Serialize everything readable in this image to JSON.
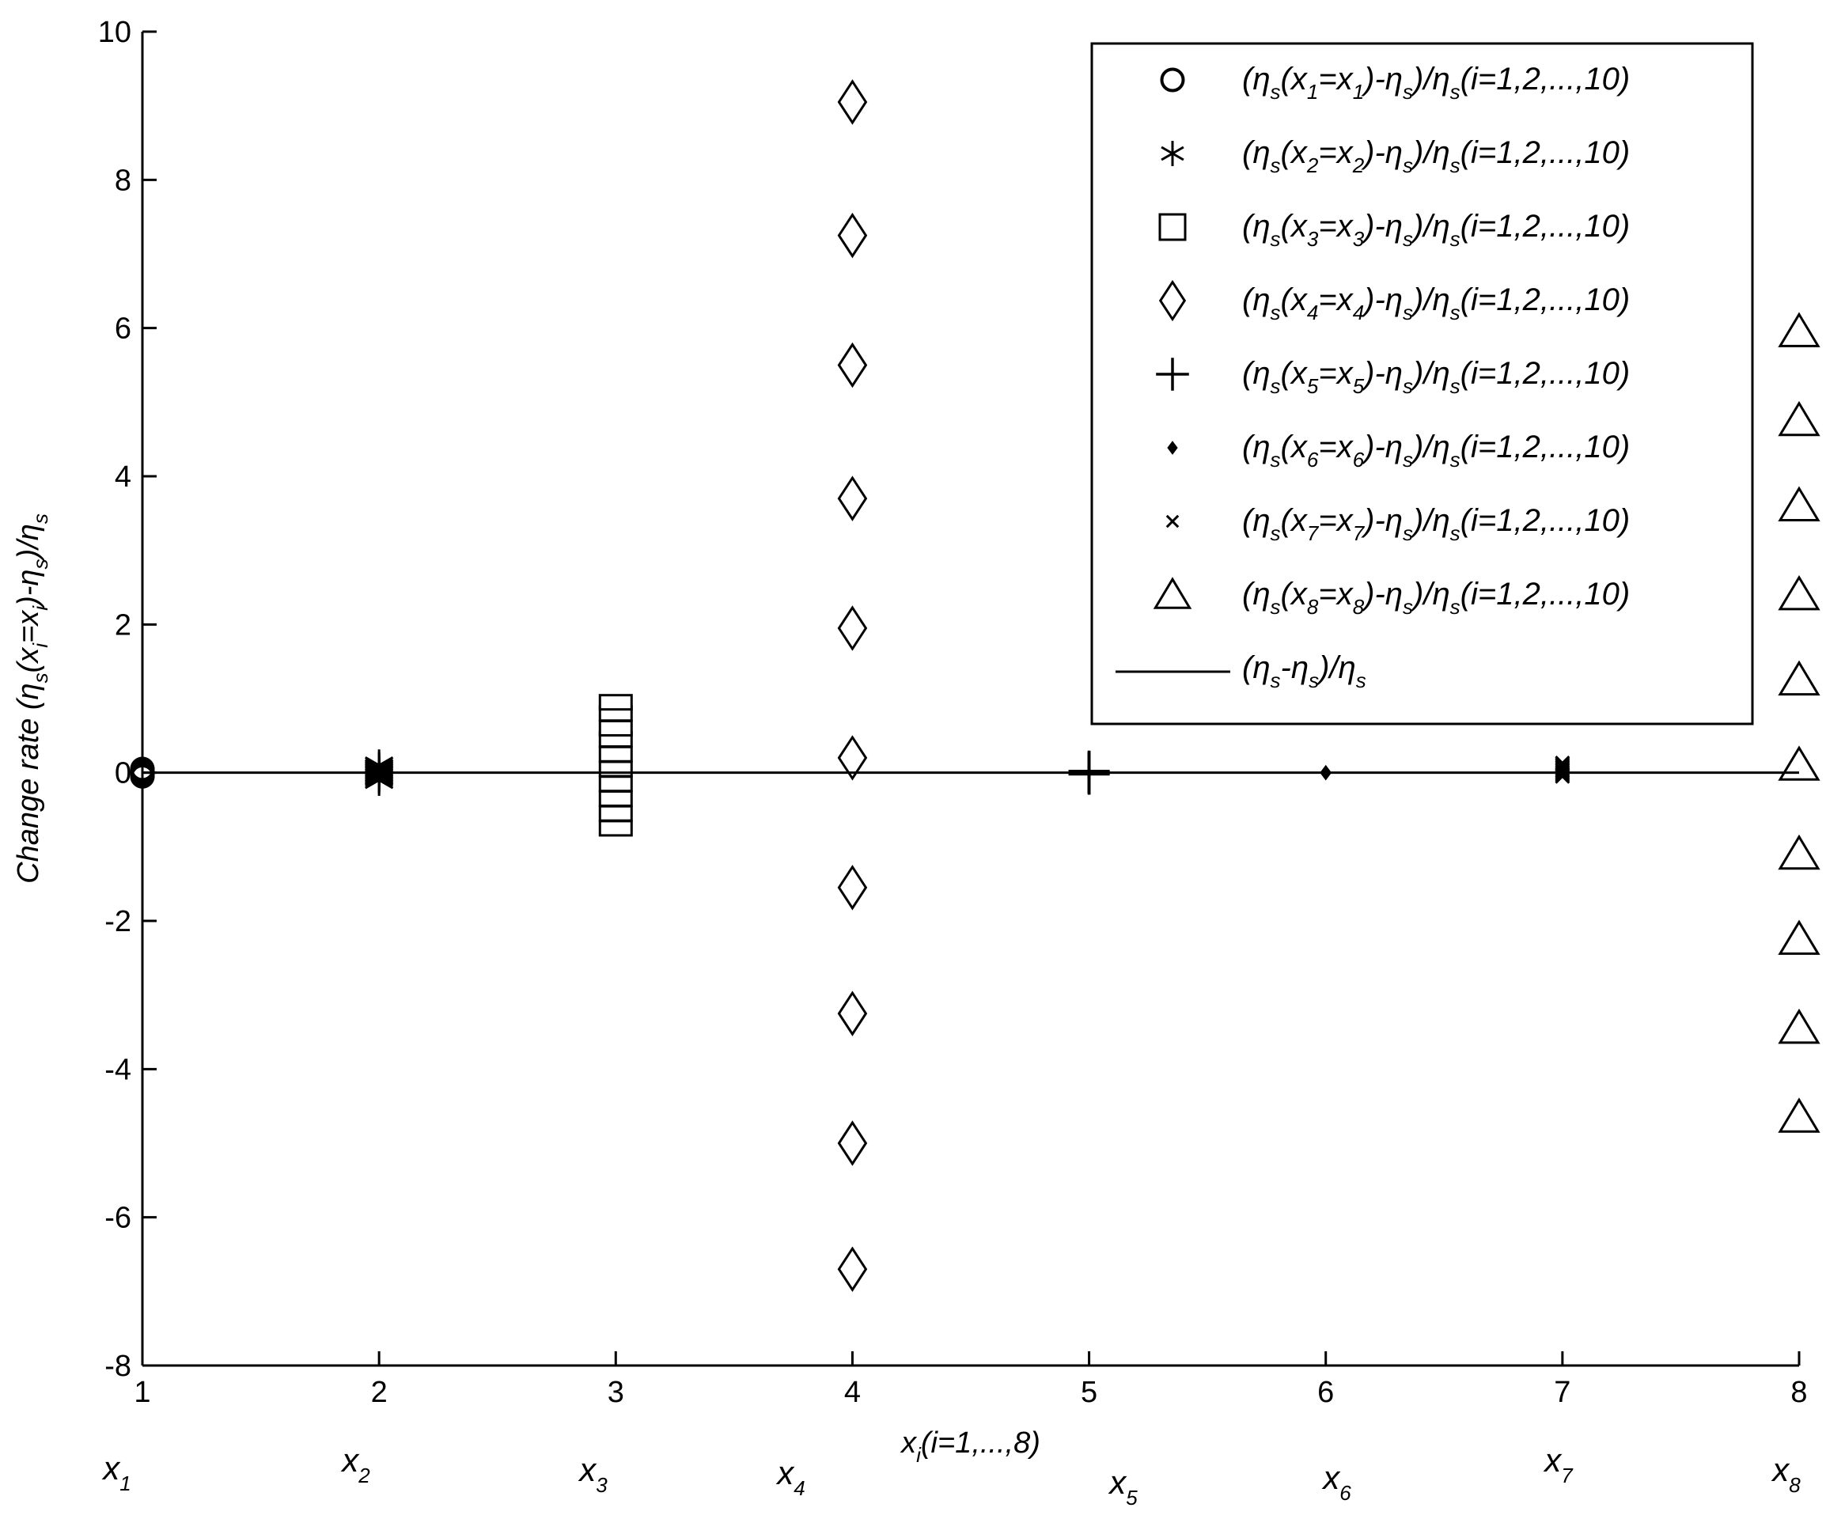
{
  "chart_data": {
    "type": "scatter",
    "title": "",
    "xlabel": "x_i(i=1,...,8)",
    "ylabel": "Change rate (η_s(x_i=x_i)-η_s)/η_s",
    "xlim": [
      1,
      8
    ],
    "ylim": [
      -8,
      10
    ],
    "xticks": [
      1,
      2,
      3,
      4,
      5,
      6,
      7,
      8
    ],
    "yticks": [
      -8,
      -6,
      -4,
      -2,
      0,
      2,
      4,
      6,
      8,
      10
    ],
    "grid": false,
    "legend_position": "top-right",
    "x_variable_labels": [
      "1",
      "2",
      "3",
      "4",
      "5",
      "6",
      "7",
      "8"
    ],
    "series": [
      {
        "name": "(η_s(x_1=x_1)-η_s)/η_s(i=1,2,...,10)",
        "marker": "circle",
        "x": 1,
        "values": [
          -0.05,
          -0.04,
          -0.03,
          -0.02,
          -0.01,
          0.01,
          0.02,
          0.03,
          0.04,
          0.05
        ]
      },
      {
        "name": "(η_s(x_2=x_2)-η_s)/η_s(i=1,2,...,10)",
        "marker": "asterisk",
        "x": 2,
        "values": [
          -0.1,
          -0.07,
          -0.05,
          -0.03,
          -0.01,
          0.01,
          0.03,
          0.05,
          0.07,
          0.1
        ]
      },
      {
        "name": "(η_s(x_3=x_3)-η_s)/η_s(i=1,2,...,10)",
        "marker": "square",
        "x": 3,
        "values": [
          -0.75,
          -0.55,
          -0.35,
          -0.15,
          0.05,
          0.25,
          0.45,
          0.6,
          0.8,
          0.95
        ]
      },
      {
        "name": "(η_s(x_4=x_4)-η_s)/η_s(i=1,2,...,10)",
        "marker": "diamond",
        "x": 4,
        "values": [
          -6.7,
          -5.0,
          -3.25,
          -1.55,
          0.2,
          1.95,
          3.7,
          5.5,
          7.25,
          9.05
        ]
      },
      {
        "name": "(η_s(x_5=x_5)-η_s)/η_s(i=1,2,...,10)",
        "marker": "plus",
        "x": 5,
        "values": [
          -0.02,
          -0.015,
          -0.01,
          -0.005,
          0.0,
          0.0,
          0.005,
          0.01,
          0.015,
          0.02
        ]
      },
      {
        "name": "(η_s(x_6=x_6)-η_s)/η_s(i=1,2,...,10)",
        "marker": "dot",
        "x": 6,
        "values": [
          -0.01,
          -0.008,
          -0.006,
          -0.004,
          -0.002,
          0.002,
          0.004,
          0.006,
          0.008,
          0.01
        ]
      },
      {
        "name": "(η_s(x_7=x_7)-η_s)/η_s(i=1,2,...,10)",
        "marker": "x",
        "x": 7,
        "values": [
          -0.05,
          -0.03,
          -0.01,
          0.01,
          0.03,
          0.05,
          0.07,
          0.09,
          0.11,
          0.13
        ]
      },
      {
        "name": "(η_s(x_8=x_8)-η_s)/η_s(i=1,2,...,10)",
        "marker": "triangle",
        "x": 8,
        "values": [
          -4.65,
          -3.45,
          -2.25,
          -1.1,
          0.1,
          1.25,
          2.4,
          3.6,
          4.75,
          5.95
        ]
      },
      {
        "name": "(η_s-η_s)/η_s",
        "marker": "line",
        "x": [
          1,
          8
        ],
        "values": [
          0,
          0
        ]
      }
    ]
  }
}
